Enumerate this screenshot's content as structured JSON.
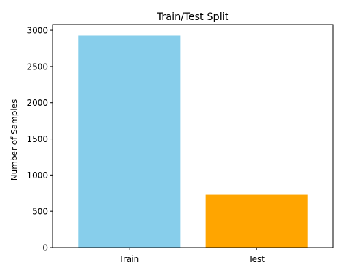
{
  "chart_data": {
    "type": "bar",
    "title": "Train/Test Split",
    "xlabel": "",
    "ylabel": "Number of Samples",
    "categories": [
      "Train",
      "Test"
    ],
    "values": [
      2930,
      733
    ],
    "colors": [
      "#87CEEB",
      "#FFA500"
    ],
    "ylim": [
      0,
      3076.5
    ],
    "yticks": [
      0,
      500,
      1000,
      1500,
      2000,
      2500,
      3000
    ],
    "grid": false,
    "legend": "none"
  }
}
